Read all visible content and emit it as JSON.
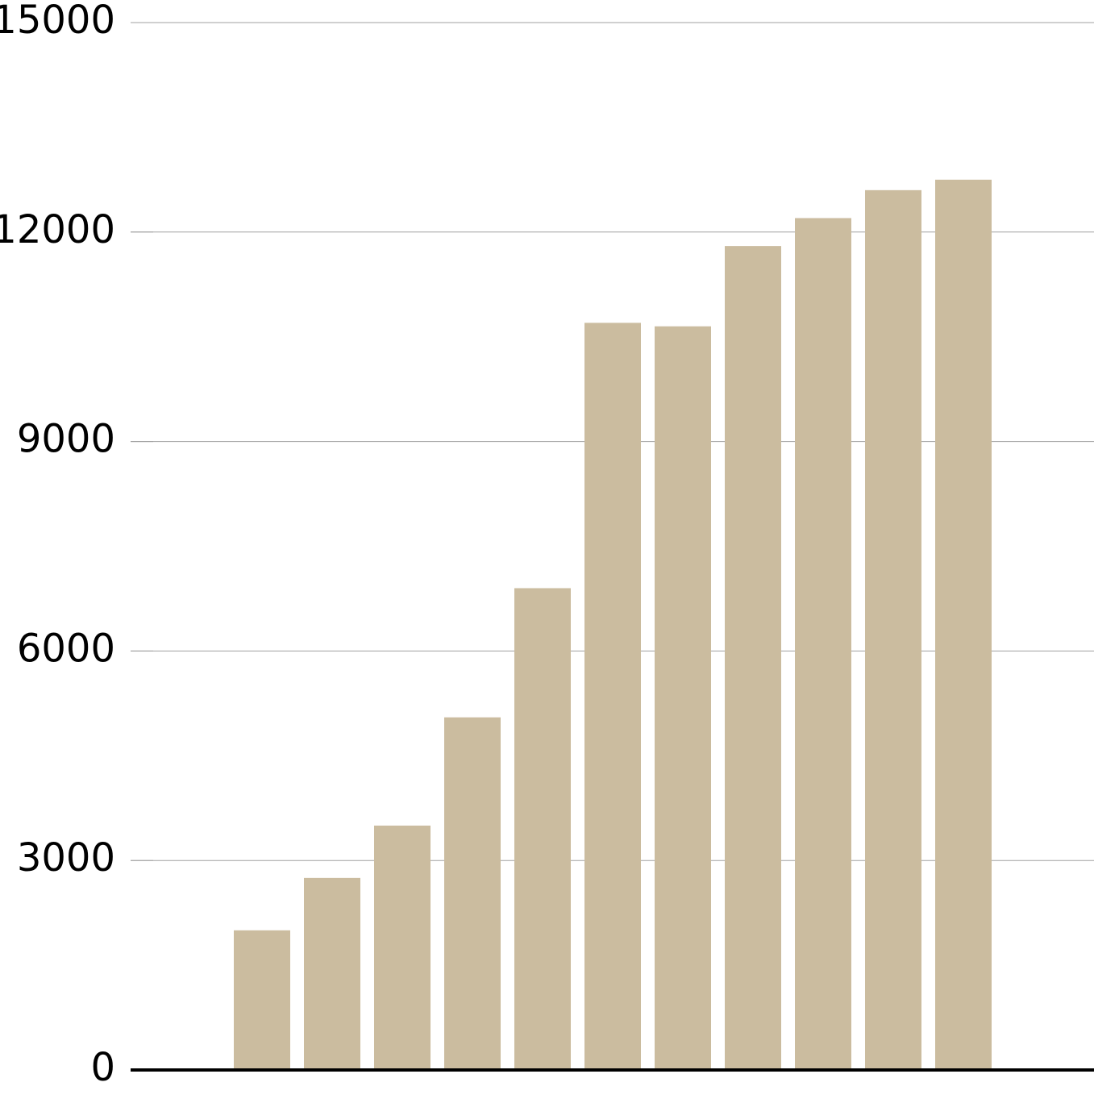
{
  "chart_data": {
    "type": "bar",
    "categories": [
      null,
      null,
      null,
      null,
      null,
      null,
      null,
      null,
      null,
      null,
      null
    ],
    "values": [
      2000,
      2750,
      3500,
      5050,
      6900,
      10700,
      10650,
      11800,
      12200,
      12600,
      12750
    ],
    "color": "#cbbc9f",
    "ylim": [
      0,
      15000
    ],
    "yticks": [
      0,
      3000,
      6000,
      9000,
      12000,
      15000
    ],
    "grid": true
  }
}
